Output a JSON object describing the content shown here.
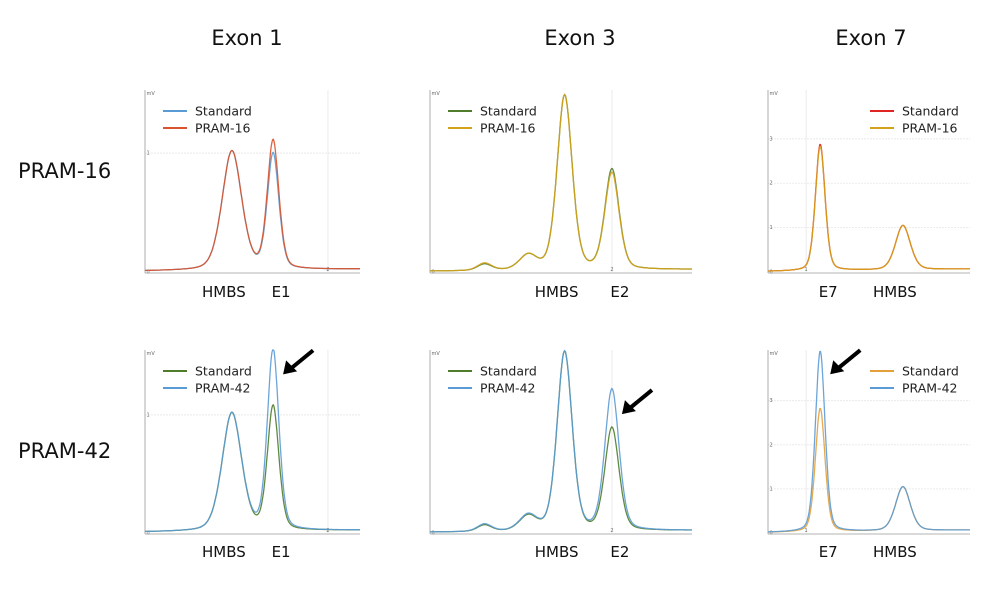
{
  "columns": [
    "Exon 1",
    "Exon 3",
    "Exon 7"
  ],
  "rows": [
    "PRAM-16",
    "PRAM-42"
  ],
  "chart_data": [
    {
      "type": "line",
      "row": "PRAM-16",
      "column": "Exon 1",
      "ylabel": "mV",
      "xlim": [
        0,
        2.35
      ],
      "ylim": [
        0,
        1.53
      ],
      "xticks": [
        2
      ],
      "yticks": [
        0,
        1
      ],
      "grid": true,
      "legend": "top-left",
      "peak_labels": [
        {
          "text": "HMBS",
          "x": 0.95
        },
        {
          "text": "E1",
          "x": 1.4
        }
      ],
      "series": [
        {
          "name": "Standard",
          "color": "#5b9bd5",
          "peaks": [
            {
              "x": 0.95,
              "h": 1.0,
              "w": 0.11
            },
            {
              "x": 1.4,
              "h": 0.97,
              "w": 0.065
            }
          ],
          "baseline": 0.02
        },
        {
          "name": "PRAM-16",
          "color": "#d9532b",
          "peaks": [
            {
              "x": 0.95,
              "h": 1.0,
              "w": 0.11
            },
            {
              "x": 1.4,
              "h": 1.08,
              "w": 0.065
            }
          ],
          "baseline": 0.02
        }
      ]
    },
    {
      "type": "line",
      "row": "PRAM-16",
      "column": "Exon 3",
      "ylabel": "mV",
      "xlim": [
        0,
        2.88
      ],
      "ylim": [
        0,
        1.0
      ],
      "xticks": [
        2
      ],
      "yticks": [
        0
      ],
      "grid": true,
      "legend": "top-left",
      "peak_labels": [
        {
          "text": "HMBS",
          "x": 1.48
        },
        {
          "text": "E2",
          "x": 2.0
        }
      ],
      "series": [
        {
          "name": "Standard",
          "color": "#4f7d2b",
          "peaks": [
            {
              "x": 0.6,
              "h": 0.035,
              "w": 0.08
            },
            {
              "x": 1.08,
              "h": 0.08,
              "w": 0.1
            },
            {
              "x": 1.48,
              "h": 0.96,
              "w": 0.085
            },
            {
              "x": 2.0,
              "h": 0.55,
              "w": 0.08
            }
          ],
          "baseline": 0.01
        },
        {
          "name": "PRAM-16",
          "color": "#d4a21a",
          "peaks": [
            {
              "x": 0.6,
              "h": 0.04,
              "w": 0.08
            },
            {
              "x": 1.08,
              "h": 0.08,
              "w": 0.1
            },
            {
              "x": 1.48,
              "h": 0.96,
              "w": 0.085
            },
            {
              "x": 2.0,
              "h": 0.53,
              "w": 0.08
            }
          ],
          "baseline": 0.01
        }
      ]
    },
    {
      "type": "line",
      "row": "PRAM-16",
      "column": "Exon 7",
      "ylabel": "mV",
      "xlim": [
        0,
        5.3
      ],
      "ylim": [
        0,
        4.1
      ],
      "xticks": [
        1
      ],
      "yticks": [
        0,
        1,
        2,
        3
      ],
      "grid": true,
      "legend": "top-right",
      "peak_labels": [
        {
          "text": "E7",
          "x": 1.37
        },
        {
          "text": "HMBS",
          "x": 3.54
        }
      ],
      "series": [
        {
          "name": "Standard",
          "color": "#e02424",
          "peaks": [
            {
              "x": 1.37,
              "h": 2.85,
              "w": 0.13
            },
            {
              "x": 3.54,
              "h": 1.0,
              "w": 0.2
            }
          ],
          "baseline": 0.03
        },
        {
          "name": "PRAM-16",
          "color": "#d4a21a",
          "peaks": [
            {
              "x": 1.37,
              "h": 2.8,
              "w": 0.13
            },
            {
              "x": 3.54,
              "h": 1.0,
              "w": 0.2
            }
          ],
          "baseline": 0.03
        }
      ]
    },
    {
      "type": "line",
      "row": "PRAM-42",
      "column": "Exon 1",
      "ylabel": "mV",
      "xlim": [
        0,
        2.35
      ],
      "ylim": [
        0,
        1.55
      ],
      "xticks": [
        2
      ],
      "yticks": [
        0,
        1
      ],
      "grid": true,
      "legend": "top-left",
      "peak_labels": [
        {
          "text": "HMBS",
          "x": 0.95
        },
        {
          "text": "E1",
          "x": 1.4
        }
      ],
      "series": [
        {
          "name": "Standard",
          "color": "#4f7d2b",
          "peaks": [
            {
              "x": 0.95,
              "h": 1.0,
              "w": 0.11
            },
            {
              "x": 1.4,
              "h": 1.05,
              "w": 0.065
            }
          ],
          "baseline": 0.02
        },
        {
          "name": "PRAM-42",
          "color": "#5b9bd5",
          "peaks": [
            {
              "x": 0.95,
              "h": 1.0,
              "w": 0.11
            },
            {
              "x": 1.4,
              "h": 1.53,
              "w": 0.065
            }
          ],
          "baseline": 0.02
        }
      ]
    },
    {
      "type": "line",
      "row": "PRAM-42",
      "column": "Exon 3",
      "ylabel": "mV",
      "xlim": [
        0,
        2.88
      ],
      "ylim": [
        0,
        1.0
      ],
      "xticks": [
        2
      ],
      "yticks": [
        0
      ],
      "grid": true,
      "legend": "top-left",
      "peak_labels": [
        {
          "text": "HMBS",
          "x": 1.48
        },
        {
          "text": "E2",
          "x": 2.0
        }
      ],
      "series": [
        {
          "name": "Standard",
          "color": "#4f7d2b",
          "peaks": [
            {
              "x": 0.6,
              "h": 0.035,
              "w": 0.08
            },
            {
              "x": 1.08,
              "h": 0.08,
              "w": 0.1
            },
            {
              "x": 1.48,
              "h": 0.98,
              "w": 0.085
            },
            {
              "x": 2.0,
              "h": 0.56,
              "w": 0.08
            }
          ],
          "baseline": 0.01
        },
        {
          "name": "PRAM-42",
          "color": "#5b9bd5",
          "peaks": [
            {
              "x": 0.6,
              "h": 0.04,
              "w": 0.08
            },
            {
              "x": 1.08,
              "h": 0.085,
              "w": 0.1
            },
            {
              "x": 1.48,
              "h": 0.98,
              "w": 0.085
            },
            {
              "x": 2.0,
              "h": 0.77,
              "w": 0.08
            }
          ],
          "baseline": 0.01
        }
      ]
    },
    {
      "type": "line",
      "row": "PRAM-42",
      "column": "Exon 7",
      "ylabel": "mV",
      "xlim": [
        0,
        5.3
      ],
      "ylim": [
        0,
        4.15
      ],
      "xticks": [
        1
      ],
      "yticks": [
        0,
        1,
        2,
        3
      ],
      "grid": true,
      "legend": "top-right",
      "peak_labels": [
        {
          "text": "E7",
          "x": 1.37
        },
        {
          "text": "HMBS",
          "x": 3.54
        }
      ],
      "series": [
        {
          "name": "Standard",
          "color": "#e3a03a",
          "peaks": [
            {
              "x": 1.37,
              "h": 2.8,
              "w": 0.13
            },
            {
              "x": 3.54,
              "h": 1.0,
              "w": 0.2
            }
          ],
          "baseline": 0.03
        },
        {
          "name": "PRAM-42",
          "color": "#5b9bd5",
          "peaks": [
            {
              "x": 1.37,
              "h": 4.1,
              "w": 0.13
            },
            {
              "x": 3.54,
              "h": 1.0,
              "w": 0.2
            }
          ],
          "baseline": 0.03
        }
      ]
    }
  ]
}
